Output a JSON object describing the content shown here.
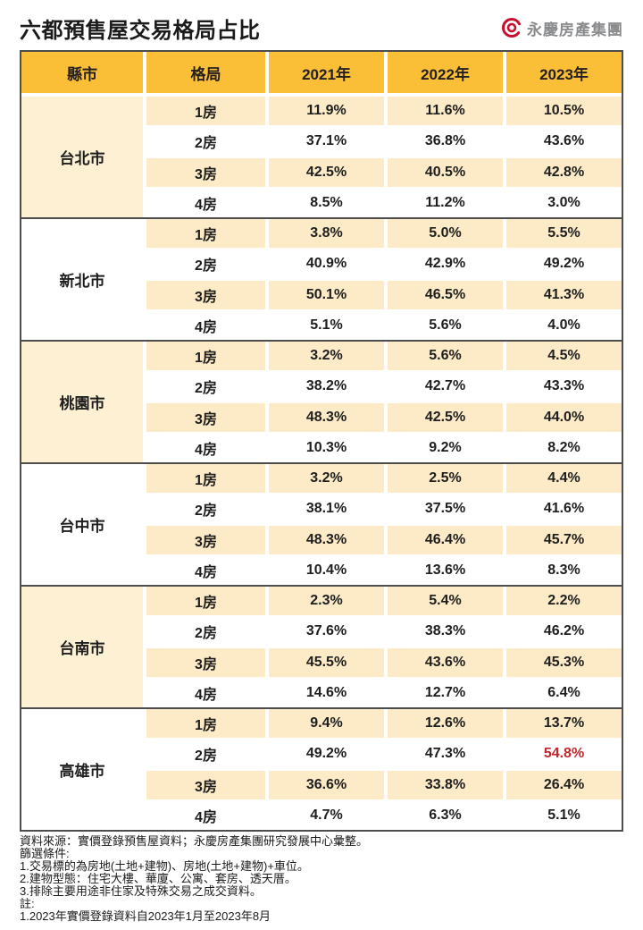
{
  "title": "六都預售屋交易格局占比",
  "logo": {
    "text": "永慶房產集團",
    "icon": "yungching-swirl-icon"
  },
  "chart_data": {
    "type": "table",
    "title": "六都預售屋交易格局占比",
    "columns": [
      "縣市",
      "格局",
      "2021年",
      "2022年",
      "2023年"
    ],
    "sections": [
      {
        "city": "台北市",
        "rows": [
          {
            "layout": "1房",
            "values": [
              "11.9%",
              "11.6%",
              "10.5%"
            ]
          },
          {
            "layout": "2房",
            "values": [
              "37.1%",
              "36.8%",
              "43.6%"
            ]
          },
          {
            "layout": "3房",
            "values": [
              "42.5%",
              "40.5%",
              "42.8%"
            ]
          },
          {
            "layout": "4房",
            "values": [
              "8.5%",
              "11.2%",
              "3.0%"
            ]
          }
        ]
      },
      {
        "city": "新北市",
        "rows": [
          {
            "layout": "1房",
            "values": [
              "3.8%",
              "5.0%",
              "5.5%"
            ]
          },
          {
            "layout": "2房",
            "values": [
              "40.9%",
              "42.9%",
              "49.2%"
            ]
          },
          {
            "layout": "3房",
            "values": [
              "50.1%",
              "46.5%",
              "41.3%"
            ]
          },
          {
            "layout": "4房",
            "values": [
              "5.1%",
              "5.6%",
              "4.0%"
            ]
          }
        ]
      },
      {
        "city": "桃園市",
        "rows": [
          {
            "layout": "1房",
            "values": [
              "3.2%",
              "5.6%",
              "4.5%"
            ]
          },
          {
            "layout": "2房",
            "values": [
              "38.2%",
              "42.7%",
              "43.3%"
            ]
          },
          {
            "layout": "3房",
            "values": [
              "48.3%",
              "42.5%",
              "44.0%"
            ]
          },
          {
            "layout": "4房",
            "values": [
              "10.3%",
              "9.2%",
              "8.2%"
            ]
          }
        ]
      },
      {
        "city": "台中市",
        "rows": [
          {
            "layout": "1房",
            "values": [
              "3.2%",
              "2.5%",
              "4.4%"
            ]
          },
          {
            "layout": "2房",
            "values": [
              "38.1%",
              "37.5%",
              "41.6%"
            ]
          },
          {
            "layout": "3房",
            "values": [
              "48.3%",
              "46.4%",
              "45.7%"
            ]
          },
          {
            "layout": "4房",
            "values": [
              "10.4%",
              "13.6%",
              "8.3%"
            ]
          }
        ]
      },
      {
        "city": "台南市",
        "rows": [
          {
            "layout": "1房",
            "values": [
              "2.3%",
              "5.4%",
              "2.2%"
            ]
          },
          {
            "layout": "2房",
            "values": [
              "37.6%",
              "38.3%",
              "46.2%"
            ]
          },
          {
            "layout": "3房",
            "values": [
              "45.5%",
              "43.6%",
              "45.3%"
            ]
          },
          {
            "layout": "4房",
            "values": [
              "14.6%",
              "12.7%",
              "6.4%"
            ]
          }
        ]
      },
      {
        "city": "高雄市",
        "rows": [
          {
            "layout": "1房",
            "values": [
              "9.4%",
              "12.6%",
              "13.7%"
            ]
          },
          {
            "layout": "2房",
            "values": [
              "49.2%",
              "47.3%",
              "54.8%"
            ]
          },
          {
            "layout": "3房",
            "values": [
              "36.6%",
              "33.8%",
              "26.4%"
            ]
          },
          {
            "layout": "4房",
            "values": [
              "4.7%",
              "6.3%",
              "5.1%"
            ]
          }
        ]
      }
    ],
    "highlight": {
      "section_index": 5,
      "row_index": 1,
      "value_index": 2,
      "value": "54.8%"
    },
    "shaded_city_sections": [
      0,
      2,
      4
    ],
    "shaded_layout_rows": [
      0,
      2
    ],
    "legend_position": "none",
    "grid": false
  },
  "footer": {
    "lines": [
      "資料來源：實價登錄預售屋資料；永慶房產集團研究發展中心彙整。",
      "篩選條件:",
      "1.交易標的為房地(土地+建物)、房地(土地+建物)+車位。",
      "2.建物型態：住宅大樓、華廈、公寓、套房、透天厝。",
      "3.排除主要用途非住家及特殊交易之成交資料。",
      "註:",
      "1.2023年實價登錄資料自2023年1月至2023年8月"
    ]
  },
  "colors": {
    "header_bg": "#fbbe37",
    "stripe_bg": "#fcebc6",
    "city_alt_bg": "#fdf0d3",
    "border": "#4d4d4d",
    "highlight_red": "#c1272d",
    "logo_red": "#c8102e",
    "logo_gray": "#8a8b8d"
  }
}
